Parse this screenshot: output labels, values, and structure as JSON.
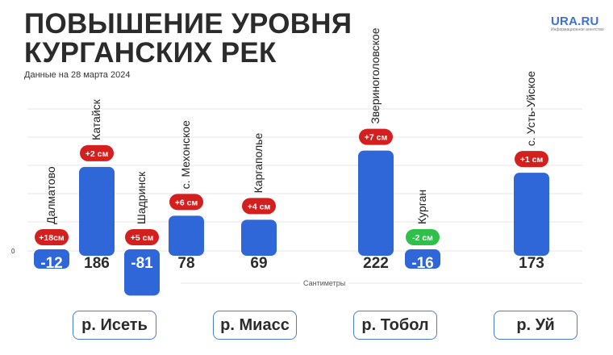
{
  "header": {
    "title_line1": "ПОВЫШЕНИЕ УРОВНЯ",
    "title_line2": "КУРГАНСКИХ РЕК",
    "subtitle": "Данные на 28 марта 2024",
    "logo": "URA.RU",
    "logo_sub": "Информационное агентство"
  },
  "chart_data": {
    "type": "bar",
    "ylabel": "Сантиметры",
    "zero_label": "0",
    "categories": [
      "Далматово",
      "Катайск",
      "Шадринск",
      "с. Мехонское",
      "Каргаполье",
      "Звериноголовское",
      "Курган",
      "с. Усть-Уйское"
    ],
    "values": [
      -12,
      186,
      -81,
      78,
      69,
      222,
      -16,
      173
    ],
    "value_labels": [
      "-12",
      "186",
      "-81",
      "78",
      "69",
      "222",
      "-16",
      "173"
    ],
    "changes": [
      "+18см",
      "+2 см",
      "+5 см",
      "+6 см",
      "+4 см",
      "+7 см",
      "-2 см",
      "+1 см"
    ],
    "change_colors": [
      "#d41f1f",
      "#d41f1f",
      "#d41f1f",
      "#d41f1f",
      "#d41f1f",
      "#d41f1f",
      "#2fbf4a",
      "#d41f1f"
    ],
    "bar_color": "#2f66d8",
    "groups": [
      "р. Исеть",
      "р. Исеть",
      "р. Исеть",
      "р. Исеть",
      "р. Миасс",
      "р. Тобол",
      "р. Тобол",
      "р. Уй"
    ],
    "grid": true
  },
  "rivers": [
    "р. Исеть",
    "р. Миасс",
    "р. Тобол",
    "р. Уй"
  ]
}
